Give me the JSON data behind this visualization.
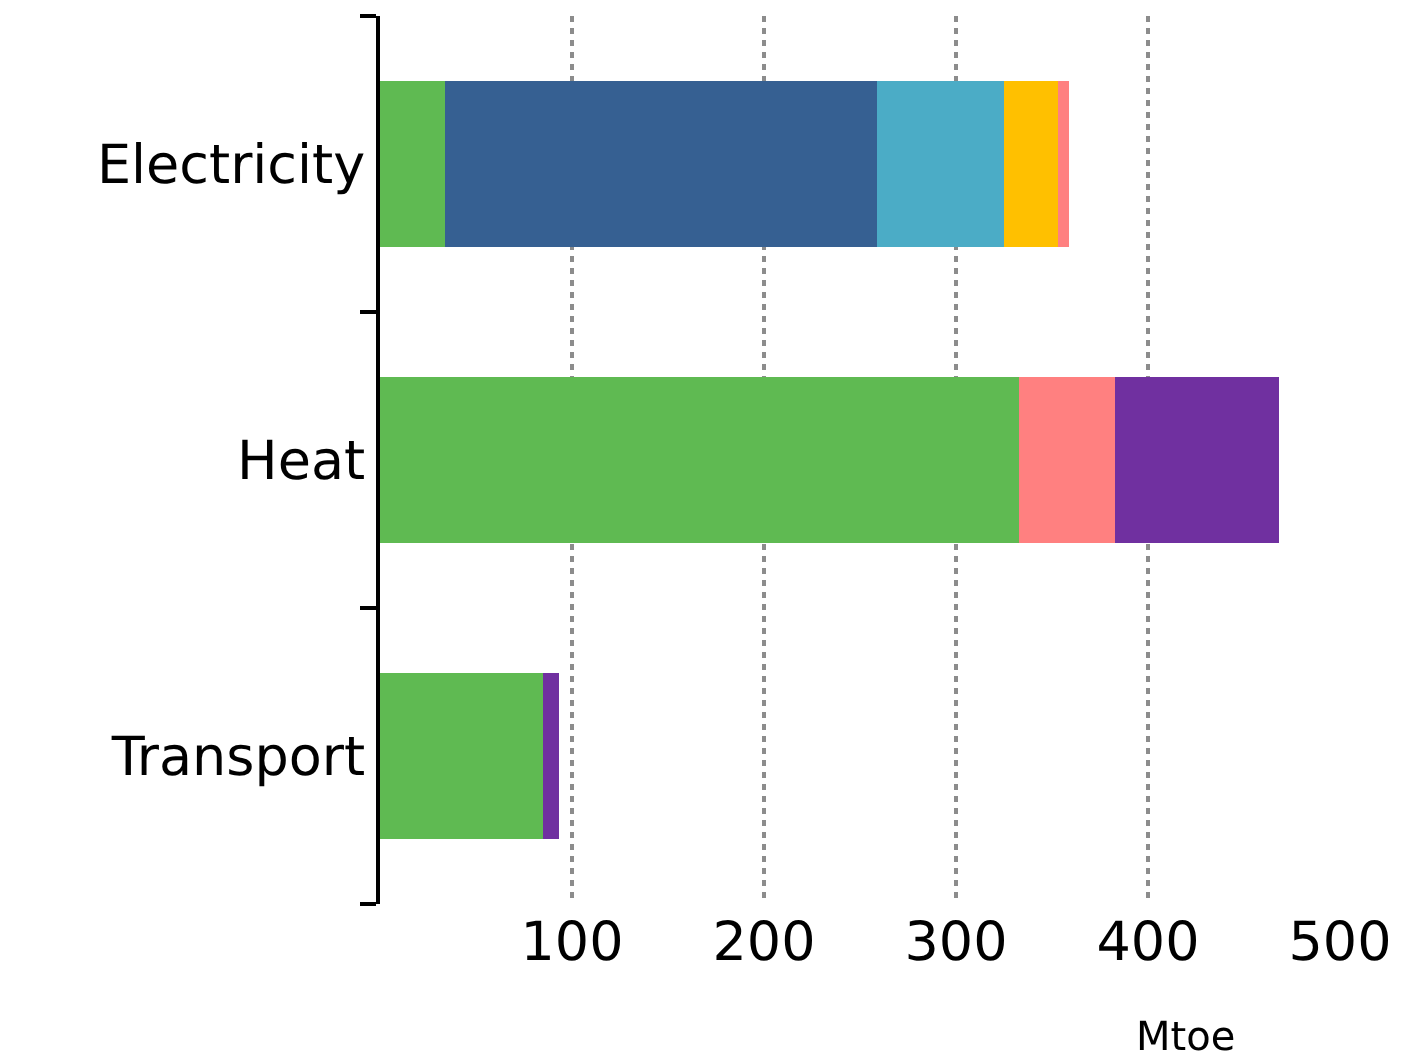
{
  "chart_data": {
    "type": "bar",
    "orientation": "horizontal",
    "stacked": true,
    "categories": [
      "Electricity",
      "Heat",
      "Transport"
    ],
    "series": [
      {
        "color": "#5fba52",
        "values": [
          34,
          333,
          85
        ]
      },
      {
        "color": "#366092",
        "values": [
          225,
          null,
          null
        ]
      },
      {
        "color": "#4bacc6",
        "values": [
          66,
          null,
          null
        ]
      },
      {
        "color": "#ffc000",
        "values": [
          28,
          null,
          null
        ]
      },
      {
        "color": "#ff8080",
        "values": [
          6,
          50,
          null
        ]
      },
      {
        "color": "#7030a0",
        "values": [
          null,
          85,
          8
        ]
      }
    ],
    "xlabel": "Mtoe",
    "xlim": [
      0,
      500
    ],
    "xticks": [
      100,
      200,
      300,
      400,
      500
    ],
    "grid": "x"
  }
}
